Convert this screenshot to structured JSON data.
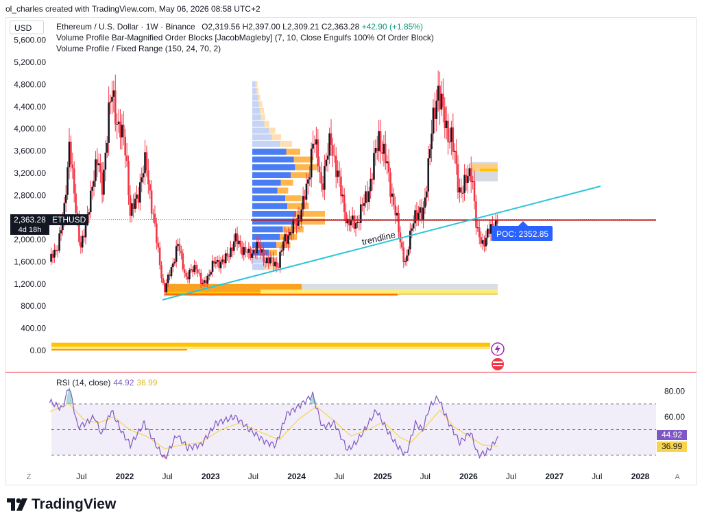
{
  "header": {
    "creator_line": "ol_charles created with TradingView.com, May 06, 2026 08:58 UTC+2"
  },
  "currency_button": "USD",
  "legend": {
    "symbol_line": "Ethereum / U.S. Dollar · 1W · Binance",
    "ohlc": "O2,319.56  H2,397.00  L2,309.21  C2,363.28",
    "change": "+42.90 (+1.85%)",
    "indicator_1": "Volume Profile Bar-Magnified Order Blocks [JacobMagleby] (7, 10, Close Engulfs 100% Of Order Block)",
    "indicator_2": "Volume Profile / Fixed Range (150, 24, 70, 2)"
  },
  "price_tag": {
    "price": "2,363.28",
    "countdown": "4d 18h",
    "symbol": "ETHUSD"
  },
  "annotations": {
    "trendline_label": "trendline",
    "poc_label": "POC: 2352.85"
  },
  "rsi": {
    "title": "RSI (14, close)",
    "value": "44.92",
    "ma_value": "36.99",
    "axis_labels": [
      "80.00",
      "60.00"
    ]
  },
  "x_axis": {
    "left_marker": "Z",
    "right_marker": "A",
    "labels": [
      "Jul",
      "2022",
      "Jul",
      "2023",
      "Jul",
      "2024",
      "Jul",
      "2025",
      "Jul",
      "2026",
      "Jul",
      "2027",
      "Jul",
      "2028"
    ]
  },
  "colors": {
    "up": "#089981",
    "down": "#f23645",
    "candle_body": "#131722",
    "candle_wick": "#f23645",
    "trendline": "#26c6da",
    "poc": "#2962ff",
    "rsi": "#7e57c2",
    "rsi_ma": "#f7d34e",
    "red_line": "#b71c1c"
  },
  "brand": "TradingView",
  "chart_data": [
    {
      "type": "candlestick",
      "title": "Ethereum / U.S. Dollar · 1W · Binance",
      "xlabel": "",
      "ylabel": "",
      "y_ticks": [
        "5,600.00",
        "5,200.00",
        "4,800.00",
        "4,400.00",
        "4,000.00",
        "3,600.00",
        "3,200.00",
        "2,800.00",
        "2,000.00",
        "1,600.00",
        "1,200.00",
        "800.00",
        "400.00",
        "0.00"
      ],
      "ylim": [
        0,
        5700
      ],
      "x_range": [
        "2021-02",
        "2028-06"
      ],
      "last_close": 2363.28,
      "poc": 2352.85,
      "close_path": [
        {
          "date": "2021-02-15",
          "close": 1600
        },
        {
          "date": "2021-03-15",
          "close": 1800
        },
        {
          "date": "2021-04-20",
          "close": 2500
        },
        {
          "date": "2021-05-12",
          "close": 3900
        },
        {
          "date": "2021-06-01",
          "close": 2700
        },
        {
          "date": "2021-06-25",
          "close": 1900
        },
        {
          "date": "2021-07-25",
          "close": 2300
        },
        {
          "date": "2021-08-20",
          "close": 3200
        },
        {
          "date": "2021-09-10",
          "close": 3400
        },
        {
          "date": "2021-09-25",
          "close": 2900
        },
        {
          "date": "2021-10-25",
          "close": 4200
        },
        {
          "date": "2021-11-10",
          "close": 4700
        },
        {
          "date": "2021-12-05",
          "close": 4000
        },
        {
          "date": "2022-01-05",
          "close": 3700
        },
        {
          "date": "2022-01-25",
          "close": 2400
        },
        {
          "date": "2022-03-01",
          "close": 2900
        },
        {
          "date": "2022-04-01",
          "close": 3400
        },
        {
          "date": "2022-05-15",
          "close": 2000
        },
        {
          "date": "2022-06-18",
          "close": 1050
        },
        {
          "date": "2022-07-25",
          "close": 1600
        },
        {
          "date": "2022-08-15",
          "close": 1900
        },
        {
          "date": "2022-09-20",
          "close": 1300
        },
        {
          "date": "2022-11-01",
          "close": 1550
        },
        {
          "date": "2022-11-25",
          "close": 1150
        },
        {
          "date": "2023-01-20",
          "close": 1600
        },
        {
          "date": "2023-03-01",
          "close": 1600
        },
        {
          "date": "2023-04-15",
          "close": 2000
        },
        {
          "date": "2023-06-15",
          "close": 1700
        },
        {
          "date": "2023-07-15",
          "close": 1900
        },
        {
          "date": "2023-08-20",
          "close": 1650
        },
        {
          "date": "2023-10-15",
          "close": 1550
        },
        {
          "date": "2023-11-10",
          "close": 2000
        },
        {
          "date": "2024-01-01",
          "close": 2300
        },
        {
          "date": "2024-02-15",
          "close": 2900
        },
        {
          "date": "2024-03-12",
          "close": 3900
        },
        {
          "date": "2024-04-15",
          "close": 3000
        },
        {
          "date": "2024-05-27",
          "close": 3800
        },
        {
          "date": "2024-07-05",
          "close": 2900
        },
        {
          "date": "2024-08-05",
          "close": 2300
        },
        {
          "date": "2024-09-10",
          "close": 2300
        },
        {
          "date": "2024-10-10",
          "close": 2600
        },
        {
          "date": "2024-11-15",
          "close": 3100
        },
        {
          "date": "2024-12-15",
          "close": 3900
        },
        {
          "date": "2025-01-20",
          "close": 3300
        },
        {
          "date": "2025-02-15",
          "close": 2700
        },
        {
          "date": "2025-03-20",
          "close": 1900
        },
        {
          "date": "2025-04-10",
          "close": 1550
        },
        {
          "date": "2025-05-15",
          "close": 2500
        },
        {
          "date": "2025-06-20",
          "close": 2400
        },
        {
          "date": "2025-07-20",
          "close": 3600
        },
        {
          "date": "2025-08-24",
          "close": 4800
        },
        {
          "date": "2025-09-25",
          "close": 4000
        },
        {
          "date": "2025-10-20",
          "close": 3900
        },
        {
          "date": "2025-11-20",
          "close": 2900
        },
        {
          "date": "2025-12-20",
          "close": 3000
        },
        {
          "date": "2026-01-15",
          "close": 3300
        },
        {
          "date": "2026-02-05",
          "close": 2100
        },
        {
          "date": "2026-03-01",
          "close": 1950
        },
        {
          "date": "2026-04-01",
          "close": 2150
        },
        {
          "date": "2026-05-06",
          "close": 2363.28
        }
      ]
    },
    {
      "type": "line",
      "title": "RSI (14, close)",
      "xlabel": "",
      "ylabel": "",
      "y_ticks": [
        "80.00",
        "60.00"
      ],
      "ylim": [
        25,
        85
      ],
      "bands": [
        30,
        50,
        70
      ],
      "series": [
        {
          "name": "",
          "last": 44.92,
          "points": [
            {
              "date": "2021-02-15",
              "value": 72
            },
            {
              "date": "2021-04-10",
              "value": 66
            },
            {
              "date": "2021-05-10",
              "value": 84
            },
            {
              "date": "2021-06-15",
              "value": 52
            },
            {
              "date": "2021-07-20",
              "value": 55
            },
            {
              "date": "2021-08-25",
              "value": 60
            },
            {
              "date": "2021-09-25",
              "value": 46
            },
            {
              "date": "2021-11-05",
              "value": 65
            },
            {
              "date": "2021-12-20",
              "value": 48
            },
            {
              "date": "2022-01-25",
              "value": 38
            },
            {
              "date": "2022-03-25",
              "value": 55
            },
            {
              "date": "2022-05-20",
              "value": 36
            },
            {
              "date": "2022-06-20",
              "value": 27
            },
            {
              "date": "2022-08-10",
              "value": 46
            },
            {
              "date": "2022-09-25",
              "value": 36
            },
            {
              "date": "2022-11-20",
              "value": 38
            },
            {
              "date": "2023-01-25",
              "value": 55
            },
            {
              "date": "2023-04-15",
              "value": 60
            },
            {
              "date": "2023-06-15",
              "value": 50
            },
            {
              "date": "2023-08-25",
              "value": 40
            },
            {
              "date": "2023-10-05",
              "value": 38
            },
            {
              "date": "2023-11-20",
              "value": 62
            },
            {
              "date": "2024-01-10",
              "value": 68
            },
            {
              "date": "2024-03-10",
              "value": 77
            },
            {
              "date": "2024-04-20",
              "value": 52
            },
            {
              "date": "2024-06-10",
              "value": 55
            },
            {
              "date": "2024-08-05",
              "value": 34
            },
            {
              "date": "2024-09-10",
              "value": 40
            },
            {
              "date": "2024-10-10",
              "value": 48
            },
            {
              "date": "2024-12-05",
              "value": 65
            },
            {
              "date": "2025-01-25",
              "value": 48
            },
            {
              "date": "2025-03-01",
              "value": 38
            },
            {
              "date": "2025-04-10",
              "value": 30
            },
            {
              "date": "2025-05-20",
              "value": 55
            },
            {
              "date": "2025-06-20",
              "value": 50
            },
            {
              "date": "2025-07-20",
              "value": 68
            },
            {
              "date": "2025-08-24",
              "value": 75
            },
            {
              "date": "2025-10-10",
              "value": 55
            },
            {
              "date": "2025-11-25",
              "value": 40
            },
            {
              "date": "2026-01-10",
              "value": 48
            },
            {
              "date": "2026-02-10",
              "value": 30
            },
            {
              "date": "2026-03-15",
              "value": 32
            },
            {
              "date": "2026-04-15",
              "value": 38
            },
            {
              "date": "2026-05-06",
              "value": 44.92
            }
          ]
        },
        {
          "name": "",
          "last": 36.99,
          "points": [
            {
              "date": "2021-02-15",
              "value": 64
            },
            {
              "date": "2021-05-10",
              "value": 70
            },
            {
              "date": "2021-07-10",
              "value": 58
            },
            {
              "date": "2021-09-10",
              "value": 55
            },
            {
              "date": "2021-11-15",
              "value": 60
            },
            {
              "date": "2022-01-20",
              "value": 50
            },
            {
              "date": "2022-04-01",
              "value": 45
            },
            {
              "date": "2022-06-20",
              "value": 35
            },
            {
              "date": "2022-09-01",
              "value": 38
            },
            {
              "date": "2022-11-20",
              "value": 40
            },
            {
              "date": "2023-02-15",
              "value": 50
            },
            {
              "date": "2023-05-01",
              "value": 55
            },
            {
              "date": "2023-08-01",
              "value": 48
            },
            {
              "date": "2023-10-20",
              "value": 42
            },
            {
              "date": "2024-01-10",
              "value": 58
            },
            {
              "date": "2024-03-25",
              "value": 68
            },
            {
              "date": "2024-06-01",
              "value": 58
            },
            {
              "date": "2024-08-20",
              "value": 45
            },
            {
              "date": "2024-11-01",
              "value": 50
            },
            {
              "date": "2025-01-05",
              "value": 56
            },
            {
              "date": "2025-03-15",
              "value": 44
            },
            {
              "date": "2025-05-01",
              "value": 40
            },
            {
              "date": "2025-07-01",
              "value": 52
            },
            {
              "date": "2025-09-01",
              "value": 65
            },
            {
              "date": "2025-11-01",
              "value": 52
            },
            {
              "date": "2026-01-10",
              "value": 44
            },
            {
              "date": "2026-03-01",
              "value": 38
            },
            {
              "date": "2026-05-06",
              "value": 36.99
            }
          ]
        }
      ]
    }
  ]
}
